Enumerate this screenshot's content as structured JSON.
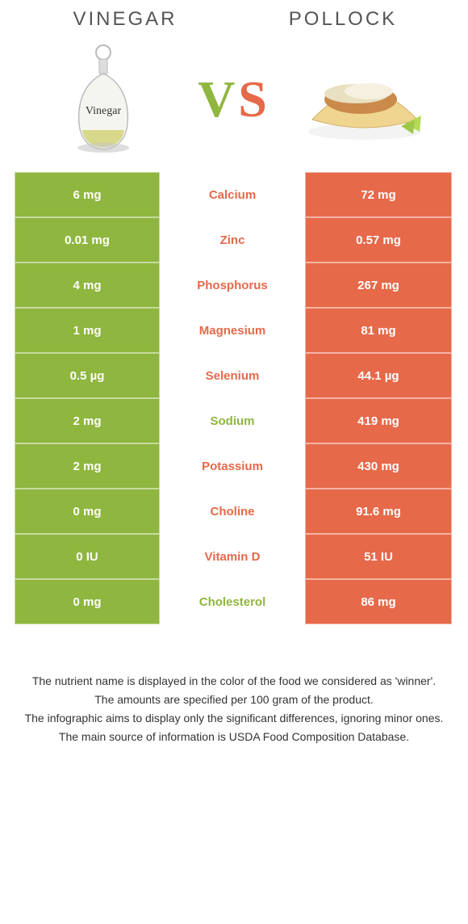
{
  "header": {
    "left_title": "Vinegar",
    "right_title": "Pollock",
    "vs_v": "V",
    "vs_s": "S"
  },
  "colors": {
    "left": "#8fb63f",
    "right": "#e6694a",
    "text": "#333333",
    "bg": "#ffffff"
  },
  "table": {
    "rows": [
      {
        "left": "6 mg",
        "label": "Calcium",
        "right": "72 mg",
        "winner": "right"
      },
      {
        "left": "0.01 mg",
        "label": "Zinc",
        "right": "0.57 mg",
        "winner": "right"
      },
      {
        "left": "4 mg",
        "label": "Phosphorus",
        "right": "267 mg",
        "winner": "right"
      },
      {
        "left": "1 mg",
        "label": "Magnesium",
        "right": "81 mg",
        "winner": "right"
      },
      {
        "left": "0.5 µg",
        "label": "Selenium",
        "right": "44.1 µg",
        "winner": "right"
      },
      {
        "left": "2 mg",
        "label": "Sodium",
        "right": "419 mg",
        "winner": "left"
      },
      {
        "left": "2 mg",
        "label": "Potassium",
        "right": "430 mg",
        "winner": "right"
      },
      {
        "left": "0 mg",
        "label": "Choline",
        "right": "91.6 mg",
        "winner": "right"
      },
      {
        "left": "0 IU",
        "label": "Vitamin D",
        "right": "51 IU",
        "winner": "right"
      },
      {
        "left": "0 mg",
        "label": "Cholesterol",
        "right": "86 mg",
        "winner": "left"
      }
    ]
  },
  "footer": {
    "line1": "The nutrient name is displayed in the color of the food we considered as 'winner'.",
    "line2": "The amounts are specified per 100 gram of the product.",
    "line3": "The infographic aims to display only the significant differences, ignoring minor ones.",
    "line4": "The main source of information is USDA Food Composition Database."
  },
  "images": {
    "left_label": "Vinegar"
  }
}
